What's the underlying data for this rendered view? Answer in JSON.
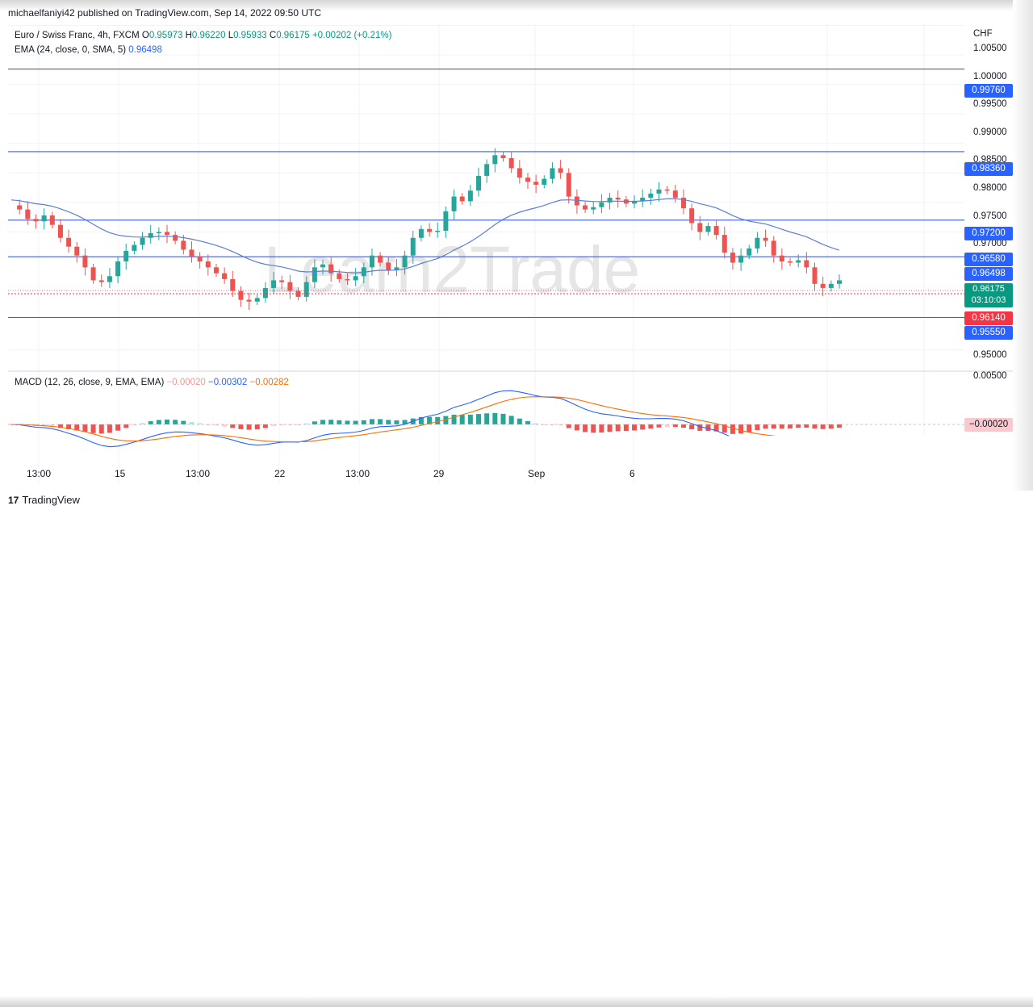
{
  "header": {
    "published": "michaelfaniyi42 published on TradingView.com, Sep 14, 2022 09:50 UTC"
  },
  "legend": {
    "symbol": "Euro / Swiss Franc, 4h, FXCM",
    "open_label": "O",
    "open": "0.95973",
    "high_label": "H",
    "high": "0.96220",
    "low_label": "L",
    "low": "0.95933",
    "close_label": "C",
    "close": "0.96175",
    "change": "+0.00202 (+0.21%)",
    "ema_label": "EMA (24, close, 0, SMA, 5)",
    "ema_value": "0.96498"
  },
  "macd": {
    "label": "MACD (12, 26, close, 9, EMA, EMA)",
    "hist": "−0.00020",
    "macd": "−0.00302",
    "signal": "−0.00282",
    "axis_value": "−0.00020",
    "axis_top": "0.00500"
  },
  "price_axis": {
    "currency": "CHF",
    "ticks": [
      "1.00500",
      "1.00000",
      "0.99500",
      "0.99000",
      "0.98500",
      "0.98000",
      "0.97500",
      "0.97000",
      "0.95000"
    ],
    "tick_values": [
      1.005,
      1.0,
      0.995,
      0.99,
      0.985,
      0.98,
      0.975,
      0.97,
      0.95
    ]
  },
  "levels": {
    "l1": "0.99760",
    "l2": "0.98360",
    "l3": "0.97200",
    "l4": "0.96580",
    "l5": "0.95550",
    "ema": "0.96498",
    "last_price": "0.96175",
    "countdown": "03:10:03",
    "bid": "0.96140"
  },
  "time_axis": [
    "13:00",
    "15",
    "13:00",
    "22",
    "13:00",
    "29",
    "Sep",
    "6"
  ],
  "watermark": "Learn2Trade",
  "footer": {
    "brand": "TradingView",
    "brand_mark": "17"
  },
  "colors": {
    "up": "#26a69a",
    "down": "#ef5350",
    "ema": "#5b7fd6",
    "level": "#3f5fd6",
    "macd": "#2962ff",
    "signal": "#ff6d00"
  },
  "chart_data": {
    "type": "candlestick",
    "symbol": "EUR/CHF",
    "timeframe": "4h",
    "close_path": [
      0.9745,
      0.9738,
      0.9722,
      0.9718,
      0.9728,
      0.9712,
      0.969,
      0.9675,
      0.966,
      0.964,
      0.9618,
      0.9615,
      0.9625,
      0.965,
      0.9668,
      0.9678,
      0.969,
      0.9698,
      0.97,
      0.9695,
      0.9685,
      0.967,
      0.9658,
      0.965,
      0.964,
      0.963,
      0.962,
      0.96,
      0.9585,
      0.9582,
      0.9588,
      0.9605,
      0.9618,
      0.9615,
      0.96,
      0.959,
      0.9615,
      0.964,
      0.9645,
      0.963,
      0.962,
      0.9618,
      0.9625,
      0.964,
      0.966,
      0.9648,
      0.9635,
      0.964,
      0.966,
      0.969,
      0.9705,
      0.97,
      0.9702,
      0.9735,
      0.976,
      0.9752,
      0.977,
      0.9795,
      0.9815,
      0.983,
      0.9825,
      0.9808,
      0.9792,
      0.9785,
      0.978,
      0.979,
      0.9808,
      0.98,
      0.976,
      0.9745,
      0.9738,
      0.9742,
      0.975,
      0.9758,
      0.9755,
      0.9748,
      0.9752,
      0.9758,
      0.9765,
      0.9772,
      0.977,
      0.9758,
      0.974,
      0.9715,
      0.97,
      0.971,
      0.9695,
      0.9665,
      0.9648,
      0.966,
      0.9672,
      0.969,
      0.9685,
      0.966,
      0.965,
      0.9648,
      0.9652,
      0.964,
      0.9612,
      0.9605,
      0.9612,
      0.9618
    ],
    "ema_period": 24,
    "levels": [
      0.9976,
      0.9836,
      0.972,
      0.9658,
      0.9555
    ],
    "last": 0.96175,
    "ylim": [
      0.9475,
      1.0052
    ]
  }
}
